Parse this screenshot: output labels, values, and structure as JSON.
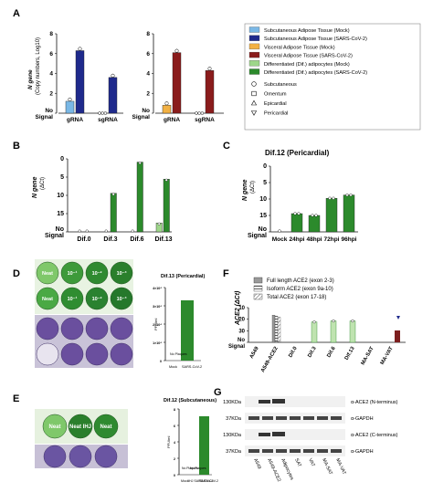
{
  "panel_labels": {
    "A": "A",
    "B": "B",
    "C": "C",
    "D": "D",
    "E": "E",
    "F": "F",
    "G": "G"
  },
  "colors": {
    "sub_mock": "#7ab8e6",
    "sub_cov": "#1f2a8c",
    "vis_mock": "#f2b144",
    "vis_cov": "#8a1c1c",
    "dif_mock": "#9ed68a",
    "dif_cov": "#2c8a2c",
    "plate_purple": "#6a4f9e",
    "well_green": "#4fa54a"
  },
  "legend": {
    "items": [
      {
        "label": "Subcutaneous Adipose Tissue (Mock)",
        "color": "#7ab8e6"
      },
      {
        "label": "Subcutaneous Adipose Tissue (SARS-CoV-2)",
        "color": "#1f2a8c"
      },
      {
        "label": "Visceral Adipose Tissue (Mock)",
        "color": "#f2b144"
      },
      {
        "label": "Visceral Adipose Tissue (SARS-CoV-2)",
        "color": "#8a1c1c"
      },
      {
        "label": "Differentiated (Dif.) adipocytes (Mock)",
        "color": "#9ed68a"
      },
      {
        "label": "Differentiated (Dif.) adipocytes (SARS-CoV-2)",
        "color": "#2c8a2c"
      }
    ],
    "symbols": [
      {
        "label": "Subcutaneous",
        "shape": "circle"
      },
      {
        "label": "Omentum",
        "shape": "square"
      },
      {
        "label": "Epicardial",
        "shape": "triangle-up"
      },
      {
        "label": "Pericardial",
        "shape": "triangle-down"
      }
    ]
  },
  "chart_data": [
    {
      "id": "A",
      "type": "bar",
      "ylabel": "N gene (Copy numbers, Log10)",
      "ylabel_main": "N gene",
      "ylabel_sub": "(Copy numbers, Log10)",
      "yticks": [
        "8",
        "6",
        "4",
        "2",
        "No Signal"
      ],
      "groups": [
        {
          "panel": "sub",
          "categories": [
            "gRNA",
            "sgRNA"
          ],
          "series": [
            {
              "values": [
                1.2,
                0
              ],
              "color_key": "sub_mock"
            },
            {
              "values": [
                6.3,
                3.6
              ],
              "color_key": "sub_cov"
            }
          ]
        },
        {
          "panel": "vis",
          "categories": [
            "gRNA",
            "sgRNA"
          ],
          "series": [
            {
              "values": [
                0.8,
                0
              ],
              "color_key": "vis_mock"
            },
            {
              "values": [
                6.1,
                4.3
              ],
              "color_key": "vis_cov"
            }
          ]
        }
      ],
      "ylim": [
        0,
        8
      ]
    },
    {
      "id": "B",
      "type": "bar",
      "ylabel": "N gene (ΔCt)",
      "ylabel_main": "N gene",
      "ylabel_sub": "(ΔCt)",
      "yticks": [
        "0",
        "5",
        "10",
        "15",
        "No Signal"
      ],
      "categories": [
        "Dif.0",
        "Dif.3",
        "Dif.6",
        "Dif.13"
      ],
      "series": [
        {
          "values": [
            0,
            0,
            0,
            2.2
          ],
          "color_key": "dif_mock"
        },
        {
          "values": [
            0,
            9.5,
            17.2,
            13
          ]
        }
      ],
      "ylim": [
        0,
        18
      ]
    },
    {
      "id": "C",
      "type": "bar",
      "title": "Dif.12 (Pericardial)",
      "ylabel": "N gene (ΔCt)",
      "ylabel_main": "N gene",
      "ylabel_sub": "(ΔCt)",
      "yticks": [
        "0",
        "5",
        "10",
        "15",
        "No Signal"
      ],
      "categories": [
        "Mock",
        "24hpi",
        "48hpi",
        "72hpi",
        "96hpi"
      ],
      "values": [
        0,
        5,
        4.5,
        9.2,
        10.1
      ],
      "ylim": [
        0,
        18
      ]
    },
    {
      "id": "D_bar",
      "type": "bar",
      "title": "Dif.13 (Pericardial)",
      "ylabel": "PFU/ml",
      "categories": [
        "Mock",
        "SARS-CoV-2"
      ],
      "values": [
        0,
        3.3
      ],
      "annotations": [
        "No Plaques"
      ],
      "yticks": [
        "4×10⁴",
        "3×10⁴",
        "2×10⁴",
        "1×10⁴",
        "0"
      ],
      "ylim": [
        0,
        4
      ]
    },
    {
      "id": "E_bar",
      "type": "bar",
      "title": "Dif.12 (Subcutaneous)",
      "ylabel": "PFU/ml",
      "categories": [
        "Mock",
        "IHJ SARS-CoV-2",
        "SARS-CoV-2"
      ],
      "values": [
        0,
        0,
        8
      ],
      "annotations": [
        "No Plaques",
        "No Plaques"
      ],
      "yticks": [
        "8",
        "6",
        "4",
        "2",
        "0"
      ],
      "ylim": [
        0,
        9
      ]
    },
    {
      "id": "F",
      "type": "bar",
      "ylabel": "ACE2 (ΔCt)",
      "yticks": [
        "10",
        "20",
        "30",
        "No signal"
      ],
      "categories": [
        "A549",
        "A549-ACE2",
        "Dif.0",
        "Dif.3",
        "Dif.6",
        "Dif.13",
        "MA-SAT",
        "MA-VAT"
      ],
      "series": [
        {
          "name": "Full length ACE2 (exon 2-3)",
          "pattern": "solid-grey",
          "values": [
            0,
            13,
            0,
            0,
            0,
            0,
            0,
            0
          ]
        },
        {
          "name": "Isoform ACE2 (exon 9a-10)",
          "pattern": "hatch-h",
          "values": [
            0,
            12.5,
            0,
            0,
            0,
            0,
            0,
            0
          ]
        },
        {
          "name": "Total ACE2 (exon 17-18)",
          "pattern": "hatch-d",
          "values": [
            0,
            12,
            0,
            0,
            0,
            0,
            0,
            0
          ]
        }
      ],
      "green_series_values": [
        0,
        0,
        0,
        20,
        21,
        21,
        0,
        0
      ],
      "ylim": [
        0,
        34
      ]
    }
  ],
  "panelD": {
    "row1": [
      "Neat",
      "10⁻¹",
      "10⁻²",
      "10⁻³"
    ],
    "row2": [
      "Neat",
      "10⁻¹",
      "10⁻²",
      "10⁻³"
    ]
  },
  "panelE": {
    "wells": [
      "Neat",
      "Neat IHJ",
      "Neat"
    ]
  },
  "panelG": {
    "bands": [
      {
        "kda": "130KDa",
        "label": "α-ACE2 (N-terminus)"
      },
      {
        "kda": "37KDa",
        "label": "α-GAPDH"
      },
      {
        "kda": "130KDa",
        "label": "α-ACE2 (C-terminus)"
      },
      {
        "kda": "37KDa",
        "label": "α-GAPDH"
      }
    ],
    "lanes": [
      "A549",
      "A549-ACE2",
      "Adipocytes",
      "SAT",
      "VAT",
      "MA-SAT",
      "MA-VAT"
    ]
  }
}
